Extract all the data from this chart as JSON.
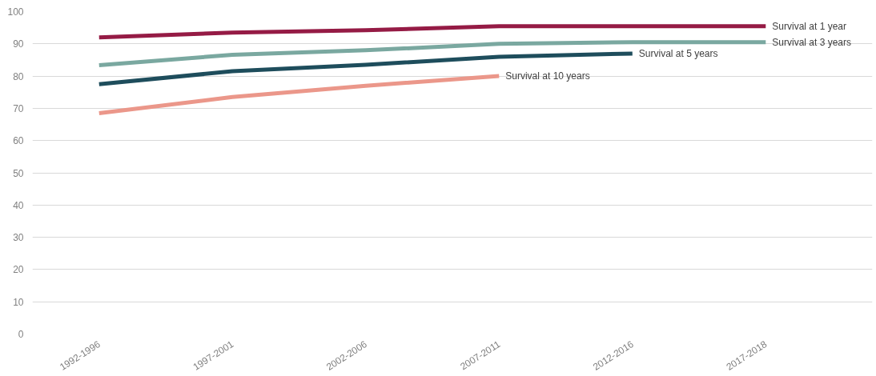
{
  "chart_data": {
    "type": "line",
    "categories": [
      "1992-1996",
      "1997-2001",
      "2002-2006",
      "2007-2011",
      "2012-2016",
      "2017-2018"
    ],
    "series": [
      {
        "name": "Survival at 1 year",
        "color": "#951b45",
        "values": [
          92,
          93.5,
          94.2,
          95.5,
          95.5,
          95.5
        ]
      },
      {
        "name": "Survival at 3 years",
        "color": "#7aa8a0",
        "values": [
          83.4,
          86.6,
          88,
          90,
          90.5,
          90.5
        ]
      },
      {
        "name": "Survival at 5 years",
        "color": "#1e4d5c",
        "values": [
          77.5,
          81.5,
          83.5,
          86,
          87,
          null
        ]
      },
      {
        "name": "Survival at 10 years",
        "color": "#eb978a",
        "values": [
          68.5,
          73.5,
          77,
          80,
          null,
          null
        ]
      }
    ],
    "ylim": [
      0,
      100
    ],
    "yticks": [
      0,
      10,
      20,
      30,
      40,
      50,
      60,
      70,
      80,
      90,
      100
    ],
    "grid": "y",
    "line_style": "solid"
  }
}
